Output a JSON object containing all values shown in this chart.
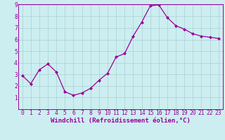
{
  "x": [
    0,
    1,
    2,
    3,
    4,
    5,
    6,
    7,
    8,
    9,
    10,
    11,
    12,
    13,
    14,
    15,
    16,
    17,
    18,
    19,
    20,
    21,
    22,
    23
  ],
  "y": [
    2.9,
    2.2,
    3.4,
    3.9,
    3.2,
    1.5,
    1.2,
    1.4,
    1.8,
    2.5,
    3.1,
    4.5,
    4.8,
    6.3,
    7.5,
    8.9,
    9.0,
    7.9,
    7.2,
    6.9,
    6.5,
    6.3,
    6.2,
    6.1
  ],
  "xlabel": "Windchill (Refroidissement éolien,°C)",
  "ylim": [
    0,
    9
  ],
  "xlim_min": -0.5,
  "xlim_max": 23.5,
  "yticks": [
    1,
    2,
    3,
    4,
    5,
    6,
    7,
    8,
    9
  ],
  "xticks": [
    0,
    1,
    2,
    3,
    4,
    5,
    6,
    7,
    8,
    9,
    10,
    11,
    12,
    13,
    14,
    15,
    16,
    17,
    18,
    19,
    20,
    21,
    22,
    23
  ],
  "line_color": "#990099",
  "marker": "D",
  "marker_size": 2.0,
  "bg_color": "#cceef0",
  "grid_color": "#aacfd4",
  "xlabel_fontsize": 6.5,
  "tick_fontsize": 5.8,
  "linewidth": 0.9
}
